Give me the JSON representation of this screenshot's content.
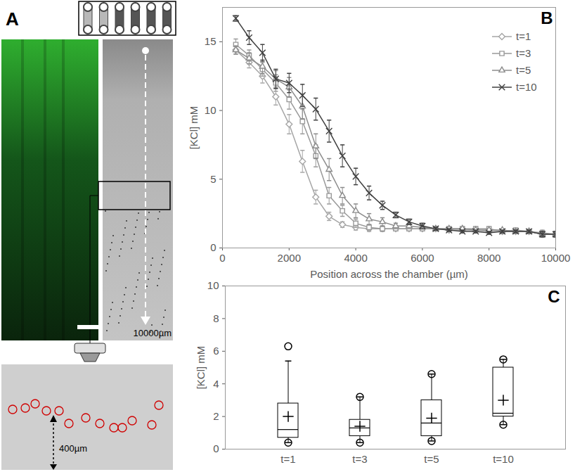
{
  "image_panel": {
    "label": "A",
    "scale_labels": [
      "10000µm",
      "400µm"
    ]
  },
  "chart_data": [
    {
      "type": "line",
      "annotations": [
        "B"
      ],
      "xlabel": "Position across the chamber (µm)",
      "ylabel": "[KCl] mM",
      "xlim": [
        0,
        10000
      ],
      "xticks": [
        0,
        2000,
        4000,
        6000,
        8000,
        10000
      ],
      "ylim": [
        0,
        17.5
      ],
      "yticks": [
        0,
        5,
        10,
        15
      ],
      "legend": "top-right",
      "x": [
        400,
        800,
        1200,
        1600,
        2000,
        2400,
        2800,
        3200,
        3600,
        4000,
        4400,
        4800,
        5200,
        5600,
        6000,
        6400,
        6800,
        7200,
        7600,
        8000,
        8400,
        8800,
        9200,
        9600,
        10000
      ],
      "series": [
        {
          "name": "t=1",
          "color": "#a6a6a6",
          "marker": "diamond",
          "values": [
            14.4,
            13.5,
            12.5,
            11.0,
            9.0,
            6.3,
            3.7,
            2.3,
            1.7,
            1.5,
            1.4,
            1.4,
            1.4,
            1.4,
            1.4,
            1.4,
            1.3,
            1.3,
            1.3,
            1.2,
            1.2,
            1.2,
            1.2,
            1.0,
            1.0
          ],
          "errors": [
            0.3,
            0.4,
            0.5,
            0.6,
            0.7,
            0.8,
            0.5,
            0.3,
            0.2,
            0.2,
            0.2,
            0.1,
            0.1,
            0.1,
            0.1,
            0.1,
            0.1,
            0.1,
            0.1,
            0.1,
            0.1,
            0.1,
            0.1,
            0.2,
            0.2
          ]
        },
        {
          "name": "t=3",
          "color": "#999999",
          "marker": "square",
          "values": [
            14.8,
            14.0,
            13.0,
            12.0,
            10.8,
            9.2,
            6.7,
            3.8,
            2.7,
            1.8,
            1.5,
            1.4,
            1.4,
            1.4,
            1.4,
            1.4,
            1.4,
            1.4,
            1.4,
            1.4,
            1.2,
            1.3,
            1.2,
            1.1,
            1.0
          ],
          "errors": [
            0.4,
            0.4,
            0.5,
            0.6,
            0.7,
            0.9,
            0.8,
            0.6,
            0.4,
            0.3,
            0.2,
            0.2,
            0.1,
            0.1,
            0.1,
            0.1,
            0.1,
            0.1,
            0.1,
            0.1,
            0.1,
            0.1,
            0.1,
            0.2,
            0.2
          ]
        },
        {
          "name": "t=5",
          "color": "#8c8c8c",
          "marker": "triangle",
          "values": [
            14.4,
            13.8,
            13.2,
            12.3,
            11.7,
            10.3,
            7.4,
            5.7,
            3.8,
            2.7,
            2.1,
            1.9,
            1.6,
            1.6,
            1.5,
            1.4,
            1.4,
            1.4,
            1.3,
            1.3,
            1.3,
            1.2,
            1.2,
            1.0,
            1.0
          ],
          "errors": [
            0.3,
            0.4,
            0.5,
            0.6,
            0.7,
            0.9,
            0.9,
            0.8,
            0.6,
            0.5,
            0.4,
            0.3,
            0.2,
            0.2,
            0.1,
            0.1,
            0.1,
            0.1,
            0.1,
            0.1,
            0.1,
            0.1,
            0.1,
            0.2,
            0.2
          ]
        },
        {
          "name": "t=10",
          "color": "#404040",
          "marker": "times",
          "values": [
            16.7,
            15.3,
            14.2,
            12.3,
            12.0,
            11.1,
            10.1,
            8.5,
            6.7,
            5.2,
            4.0,
            3.1,
            2.4,
            1.9,
            1.6,
            1.4,
            1.3,
            1.2,
            1.2,
            1.1,
            1.2,
            1.2,
            1.2,
            1.0,
            1.0
          ],
          "errors": [
            0.2,
            0.5,
            0.6,
            0.7,
            0.7,
            0.8,
            0.8,
            0.8,
            0.8,
            0.6,
            0.5,
            0.3,
            0.2,
            0.2,
            0.2,
            0.1,
            0.1,
            0.1,
            0.1,
            0.1,
            0.1,
            0.1,
            0.1,
            0.2,
            0.2
          ]
        }
      ]
    },
    {
      "type": "box",
      "annotations": [
        "C"
      ],
      "ylabel": "[KCl] mM",
      "ylim": [
        0,
        10
      ],
      "yticks": [
        0,
        2,
        4,
        6,
        8,
        10
      ],
      "color": "#000000",
      "categories": [
        "t=1",
        "t=3",
        "t=5",
        "t=10"
      ],
      "min": [
        0.4,
        0.4,
        0.5,
        1.5
      ],
      "whisker_low": [
        0.4,
        0.4,
        0.5,
        1.5
      ],
      "q1": [
        0.7,
        0.8,
        0.8,
        2.0
      ],
      "median": [
        1.2,
        1.3,
        1.6,
        2.2
      ],
      "q3": [
        2.8,
        1.8,
        3.0,
        5.0
      ],
      "whisker_high": [
        5.4,
        3.2,
        4.6,
        5.5
      ],
      "max": [
        6.3,
        3.2,
        4.6,
        5.5
      ],
      "mean": [
        2.0,
        1.4,
        1.9,
        3.0
      ]
    }
  ]
}
